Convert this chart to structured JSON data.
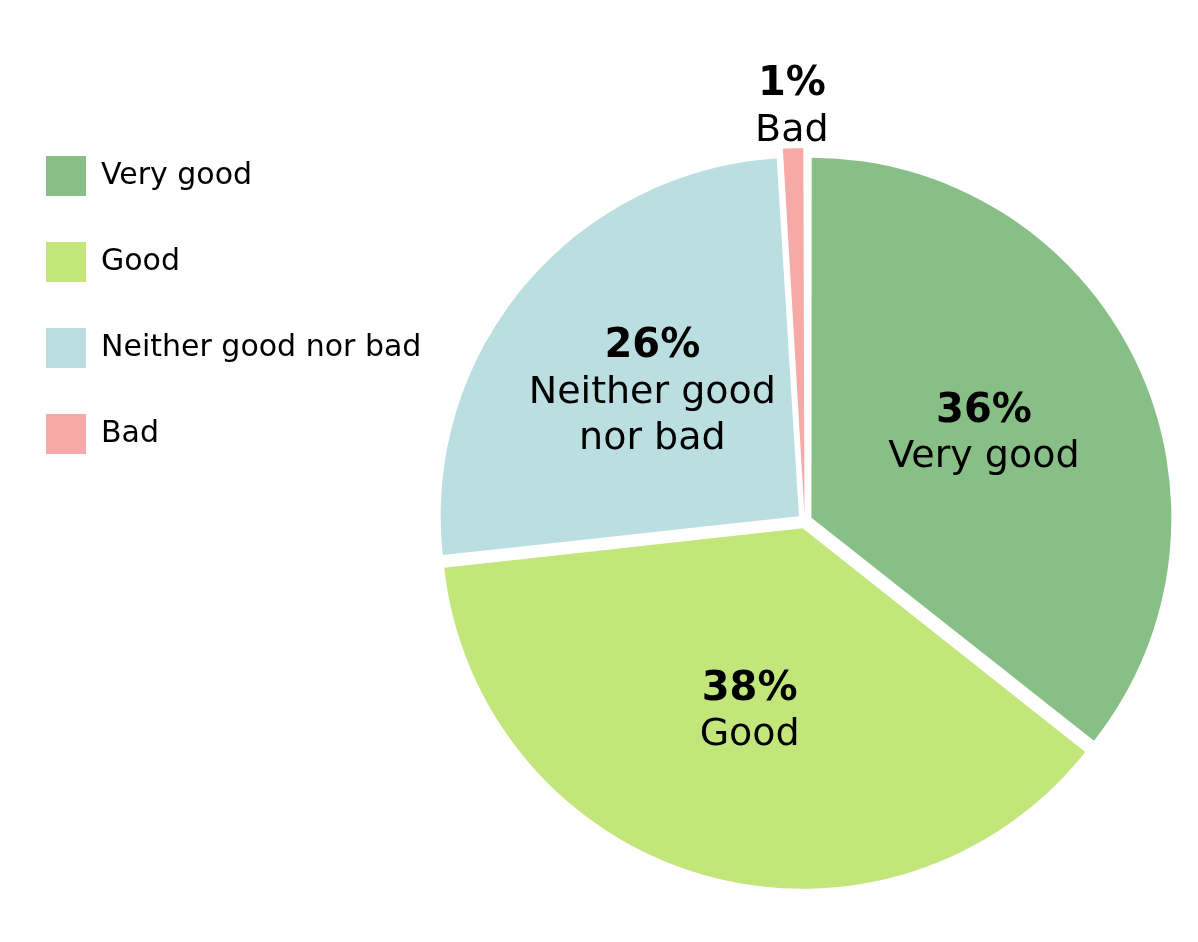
{
  "chart_data": {
    "type": "pie",
    "categories": [
      "Very good",
      "Good",
      "Neither good nor bad",
      "Bad"
    ],
    "values": [
      36,
      38,
      26,
      1
    ],
    "colors": [
      "#88bf86",
      "#c2e67a",
      "#bbdfe0",
      "#f7a9a8"
    ],
    "value_labels": [
      "36%",
      "38%",
      "26%",
      "1%"
    ],
    "legend": "top left"
  }
}
